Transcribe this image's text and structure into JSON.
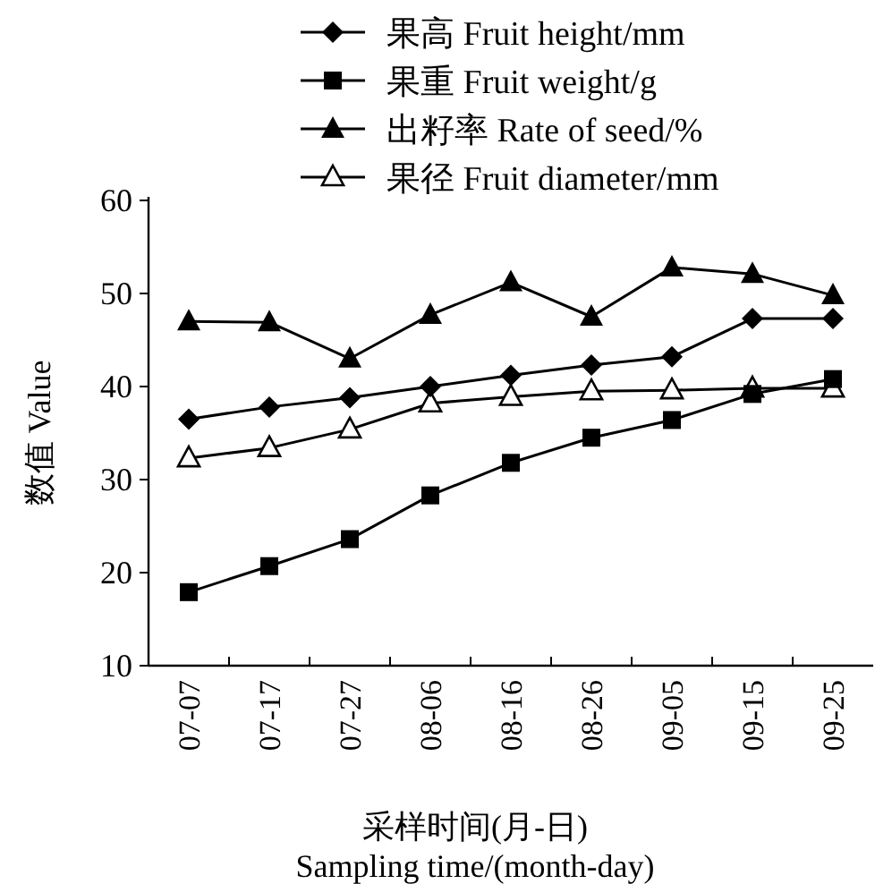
{
  "chart_data": {
    "type": "line",
    "categories": [
      "07-07",
      "07-17",
      "07-27",
      "08-06",
      "08-16",
      "08-26",
      "09-05",
      "09-15",
      "09-25"
    ],
    "xlabel": "采样时间(月-日)\nSampling time/(month-day)",
    "ylabel": "数值 Value",
    "ylim": [
      10,
      60
    ],
    "yticks": [
      10,
      20,
      30,
      40,
      50,
      60
    ],
    "legend": "top",
    "grid": false,
    "series": [
      {
        "name": "果高 Fruit height/mm",
        "color": "#000000",
        "marker": "diamond",
        "values": [
          36.5,
          37.8,
          38.8,
          40,
          41.2,
          42.3,
          43.2,
          47.3,
          47.3
        ]
      },
      {
        "name": "果重 Fruit weight/g",
        "color": "#000000",
        "marker": "square",
        "values": [
          17.9,
          20.7,
          23.6,
          28.3,
          31.8,
          34.5,
          36.4,
          39.2,
          40.8
        ]
      },
      {
        "name": "出籽率 Rate of seed/%",
        "color": "#000000",
        "marker": "triangle",
        "values": [
          47,
          46.9,
          43,
          47.7,
          51.2,
          47.5,
          52.8,
          52.1,
          49.8
        ]
      },
      {
        "name": "果径 Fruit diameter/mm",
        "color": "#000000",
        "marker": "triangle-open",
        "values": [
          32.3,
          33.4,
          35.4,
          38.2,
          38.9,
          39.5,
          39.6,
          39.8,
          39.8
        ]
      }
    ]
  }
}
